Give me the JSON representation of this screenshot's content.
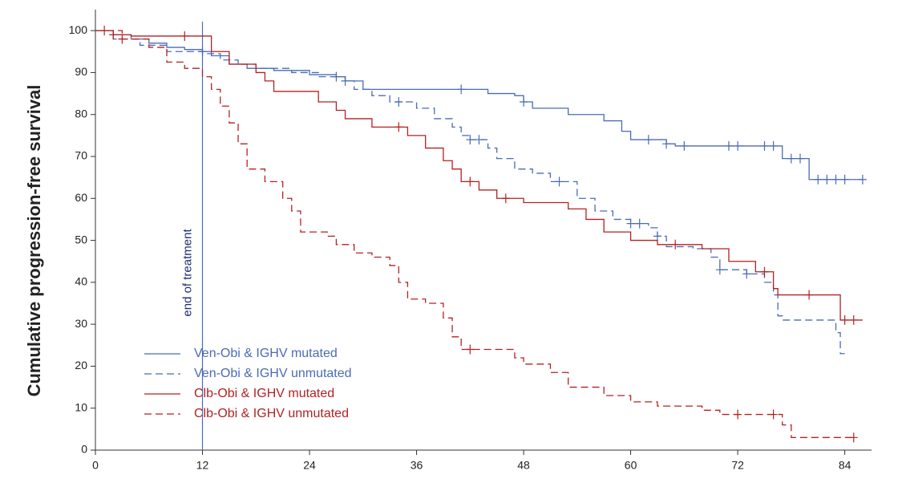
{
  "chart_data": {
    "type": "step",
    "y_label": "Cumulative progression-free survival",
    "annotation": "end of treatment",
    "vline": 12,
    "xlim": [
      0,
      87
    ],
    "ylim": [
      0,
      105
    ],
    "xticks": [
      0,
      12,
      24,
      36,
      48,
      60,
      72,
      84
    ],
    "yticks": [
      0,
      10,
      20,
      30,
      40,
      50,
      60,
      70,
      80,
      90,
      100
    ],
    "series": [
      {
        "name": "Ven-Obi & IGHV mutated",
        "color": "#4a6bb5",
        "dash": false,
        "x": [
          0,
          2,
          4,
          6,
          8,
          10,
          12,
          13,
          15,
          17,
          20,
          24,
          27,
          28,
          30,
          44,
          47,
          48,
          49,
          53,
          57,
          59,
          60,
          64,
          65,
          77,
          80,
          86
        ],
        "values": [
          100,
          99,
          98,
          97,
          96,
          95.5,
          95,
          94,
          92,
          91,
          90.5,
          89.5,
          89,
          88,
          86,
          85,
          84.5,
          83,
          81.5,
          80,
          78.5,
          76,
          74,
          73,
          72.5,
          69.5,
          64.5,
          64.5
        ],
        "censored_x": [
          12,
          27,
          41,
          48,
          62,
          64,
          66,
          71,
          72,
          75,
          76,
          78,
          79,
          81,
          82,
          83,
          84,
          86
        ]
      },
      {
        "name": "Ven-Obi & IGHV unmutated",
        "color": "#4a6bb5",
        "dash": true,
        "x": [
          0,
          2,
          5,
          8,
          12,
          14,
          16,
          18,
          22,
          25,
          28,
          29,
          31,
          33,
          36,
          38,
          40,
          41,
          42,
          44,
          45,
          47,
          49,
          51,
          54,
          56,
          58,
          60,
          62,
          63,
          64,
          67,
          69,
          70,
          73,
          75,
          76,
          76.5,
          77,
          83,
          83.5,
          84
        ],
        "values": [
          100,
          98,
          96.5,
          95,
          94.5,
          93,
          92,
          91,
          90,
          89,
          88,
          86,
          84.5,
          83,
          81.5,
          79,
          77,
          75,
          74,
          72,
          69.5,
          67,
          66,
          64,
          60,
          57,
          55,
          54,
          53,
          51,
          48.5,
          48,
          46,
          43,
          42,
          40,
          37,
          32,
          31,
          28,
          23,
          23
        ],
        "censored_x": [
          28,
          34,
          42,
          43,
          52,
          60,
          61,
          63,
          70,
          73
        ]
      },
      {
        "name": "Clb-Obi & IGHV mutated",
        "color": "#b22222",
        "dash": false,
        "x": [
          0,
          2,
          4,
          13,
          15,
          18,
          19,
          20,
          25,
          27,
          28,
          31,
          35,
          37,
          39,
          40,
          41,
          43,
          45,
          48,
          53,
          55,
          57,
          60,
          63,
          68,
          71,
          74,
          76,
          76.5,
          83.5,
          86
        ],
        "values": [
          100,
          99,
          98.7,
          95,
          92,
          90,
          88,
          85.5,
          83,
          81,
          79,
          77,
          75,
          72,
          69,
          67,
          64,
          62,
          60,
          59,
          57.5,
          55,
          52,
          50,
          49,
          48,
          45,
          42.5,
          38.5,
          37,
          31,
          31
        ],
        "censored_x": [
          2,
          10,
          34,
          42,
          46,
          65,
          75,
          80,
          84,
          85
        ]
      },
      {
        "name": "Clb-Obi & IGHV unmutated",
        "color": "#b22222",
        "dash": true,
        "x": [
          0,
          3,
          6,
          8,
          10,
          12,
          13,
          14,
          15,
          16,
          17,
          19,
          21,
          22,
          23,
          26,
          27,
          29,
          31,
          33,
          34,
          35,
          37,
          39,
          40,
          41,
          47,
          48,
          51,
          53,
          57,
          60,
          63,
          68,
          70,
          77,
          78,
          85
        ],
        "values": [
          100,
          98,
          96,
          92.5,
          91,
          89,
          86,
          82,
          78,
          73,
          67,
          64,
          60,
          57,
          52,
          51,
          49,
          47,
          46,
          44,
          40,
          36,
          35,
          31.5,
          27,
          24,
          22,
          20.5,
          18.5,
          15,
          13,
          11.5,
          10.5,
          9.5,
          8.5,
          6,
          3,
          3
        ],
        "censored_x": [
          1,
          3,
          42,
          72,
          76,
          85
        ]
      }
    ]
  }
}
